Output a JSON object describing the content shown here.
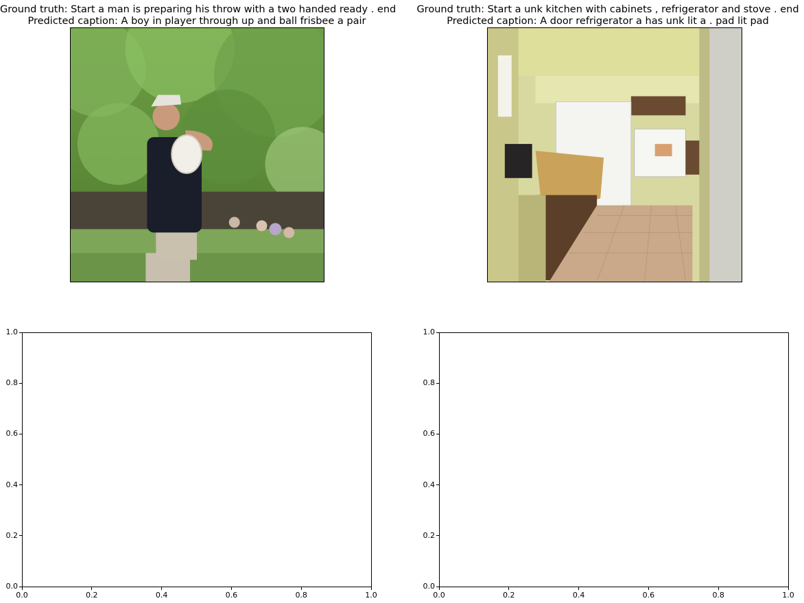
{
  "figure": {
    "panels": [
      {
        "id": "p0",
        "title_line1": "Ground truth: Start a man is preparing his throw with a two handed ready . end",
        "title_line2": "Predicted caption: A boy in player through up and ball frisbee a pair",
        "image_subject": "man-throwing-frisbee-photo"
      },
      {
        "id": "p1",
        "title_line1": "Ground truth: Start a unk kitchen with cabinets , refrigerator and stove . end",
        "title_line2": "Predicted caption: A door refrigerator a has unk lit a . pad lit pad",
        "image_subject": "kitchen-photo"
      }
    ]
  },
  "chart_data": [
    {
      "type": "scatter",
      "series": [],
      "xlim": [
        0.0,
        1.0
      ],
      "ylim": [
        0.0,
        1.0
      ],
      "xticks": [
        "0.0",
        "0.2",
        "0.4",
        "0.6",
        "0.8",
        "1.0"
      ],
      "yticks": [
        "0.0",
        "0.2",
        "0.4",
        "0.6",
        "0.8",
        "1.0"
      ],
      "grid": false
    },
    {
      "type": "scatter",
      "series": [],
      "xlim": [
        0.0,
        1.0
      ],
      "ylim": [
        0.0,
        1.0
      ],
      "xticks": [
        "0.0",
        "0.2",
        "0.4",
        "0.6",
        "0.8",
        "1.0"
      ],
      "yticks": [
        "0.0",
        "0.2",
        "0.4",
        "0.6",
        "0.8",
        "1.0"
      ],
      "grid": false
    }
  ]
}
